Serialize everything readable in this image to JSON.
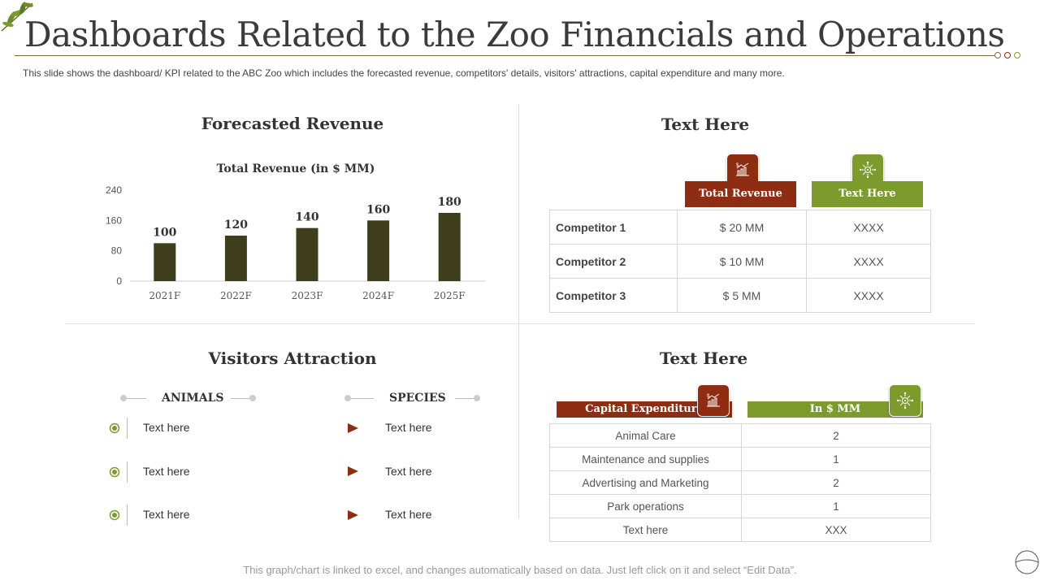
{
  "header": {
    "title": "Dashboards Related to the Zoo Financials and Operations",
    "subtitle": "This slide shows the dashboard/ KPI related to the ABC Zoo which includes the forecasted revenue,  competitors' details, visitors' attractions, capital expenditure and many more."
  },
  "forecast": {
    "section_title": "Forecasted Revenue"
  },
  "chart_data": {
    "type": "bar",
    "title": "Total Revenue (in $ MM)",
    "categories": [
      "2021F",
      "2022F",
      "2023F",
      "2024F",
      "2025F"
    ],
    "values": [
      100,
      120,
      140,
      160,
      180
    ],
    "yticks": [
      0,
      80,
      160,
      240
    ],
    "ylim": [
      0,
      240
    ],
    "xlabel": "",
    "ylabel": "",
    "bar_color": "#3e3e1c"
  },
  "competitors": {
    "section_title": "Text Here",
    "col1_header": "Total Revenue",
    "col2_header": "Text Here",
    "col1_icon": "growth-chart-icon",
    "col2_icon": "network-icon",
    "rows": [
      {
        "name": "Competitor 1",
        "revenue": "$ 20 MM",
        "other": "XXXX"
      },
      {
        "name": "Competitor 2",
        "revenue": "$ 10 MM",
        "other": "XXXX"
      },
      {
        "name": "Competitor 3",
        "revenue": "$ 5 MM",
        "other": "XXXX"
      }
    ]
  },
  "visitors": {
    "section_title": "Visitors Attraction",
    "animals_header": "ANIMALS",
    "species_header": "SPECIES",
    "animals": [
      "Text here",
      "Text here",
      "Text here"
    ],
    "species": [
      "Text here",
      "Text here",
      "Text here"
    ]
  },
  "capex": {
    "section_title": "Text Here",
    "col1_header": "Capital Expenditure",
    "col2_header": "In $ MM",
    "rows": [
      {
        "item": "Animal Care",
        "value": "2"
      },
      {
        "item": "Maintenance and supplies",
        "value": "1"
      },
      {
        "item": "Advertising and Marketing",
        "value": "2"
      },
      {
        "item": "Park operations",
        "value": "1"
      },
      {
        "item": "Text here",
        "value": "XXX"
      }
    ]
  },
  "footer": {
    "note": "This graph/chart is linked to excel, and changes automatically based on data. Just left click on it and select “Edit Data”."
  },
  "colors": {
    "rust": "#8e2d12",
    "olive": "#7d9a2c",
    "dark_olive": "#3e3e1c"
  }
}
